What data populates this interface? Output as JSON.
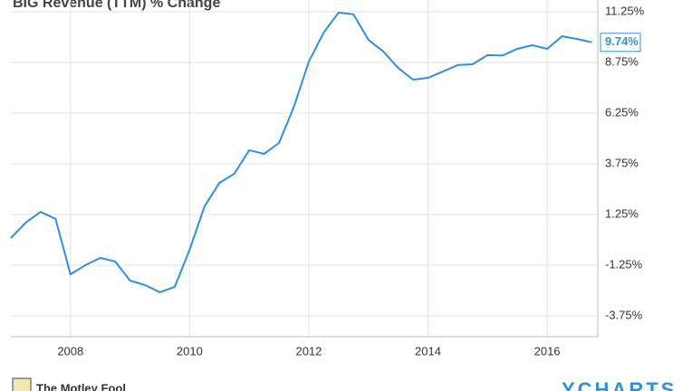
{
  "chart_data": {
    "type": "line",
    "title": "BIG Revenue (TTM) % Change",
    "footer_left": "The Motley Fool",
    "footer_right": "YCHARTS",
    "x": [
      2007,
      2007.25,
      2007.5,
      2007.75,
      2008,
      2008.25,
      2008.5,
      2008.75,
      2009,
      2009.25,
      2009.5,
      2009.75,
      2010,
      2010.25,
      2010.5,
      2010.75,
      2011,
      2011.25,
      2011.5,
      2011.75,
      2012,
      2012.25,
      2012.5,
      2012.75,
      2013,
      2013.25,
      2013.5,
      2013.75,
      2014,
      2014.25,
      2014.5,
      2014.75,
      2015,
      2015.25,
      2015.5,
      2015.75,
      2016,
      2016.25,
      2016.5,
      2016.75
    ],
    "series": [
      {
        "name": "BIG Revenue (TTM) % Change",
        "color": "#2f8fe0",
        "values": [
          0.09,
          0.85,
          1.38,
          1.03,
          -1.7,
          -1.25,
          -0.89,
          -1.07,
          -2.01,
          -2.23,
          -2.59,
          -2.32,
          -0.49,
          1.65,
          2.81,
          3.26,
          4.42,
          4.24,
          4.78,
          6.56,
          8.79,
          10.22,
          11.21,
          11.12,
          9.87,
          9.29,
          8.48,
          7.9,
          7.99,
          8.3,
          8.62,
          8.66,
          9.11,
          9.09,
          9.42,
          9.6,
          9.42,
          10.04,
          9.91,
          9.74
        ],
        "value_labels": [
          null,
          null,
          null,
          null,
          null,
          null,
          null,
          null,
          null,
          null,
          null,
          null,
          null,
          null,
          null,
          null,
          null,
          null,
          null,
          null,
          null,
          null,
          null,
          null,
          null,
          null,
          null,
          null,
          null,
          null,
          null,
          null,
          null,
          null,
          null,
          null,
          null,
          null,
          null,
          "9.74%"
        ]
      }
    ],
    "xlim": [
      2007,
      2016.85
    ],
    "xticks": [
      2008,
      2010,
      2012,
      2014,
      2016
    ],
    "ylim": [
      -4.78,
      11.83
    ],
    "yticks": [
      {
        "value": -3.75,
        "label": "-3.75%"
      },
      {
        "value": -1.25,
        "label": "-1.25%"
      },
      {
        "value": 1.25,
        "label": "1.25%"
      },
      {
        "value": 3.75,
        "label": "3.75%"
      },
      {
        "value": 6.25,
        "label": "6.25%"
      },
      {
        "value": 8.75,
        "label": "8.75%"
      },
      {
        "value": 11.25,
        "label": "11.25%"
      }
    ],
    "grid": true
  }
}
